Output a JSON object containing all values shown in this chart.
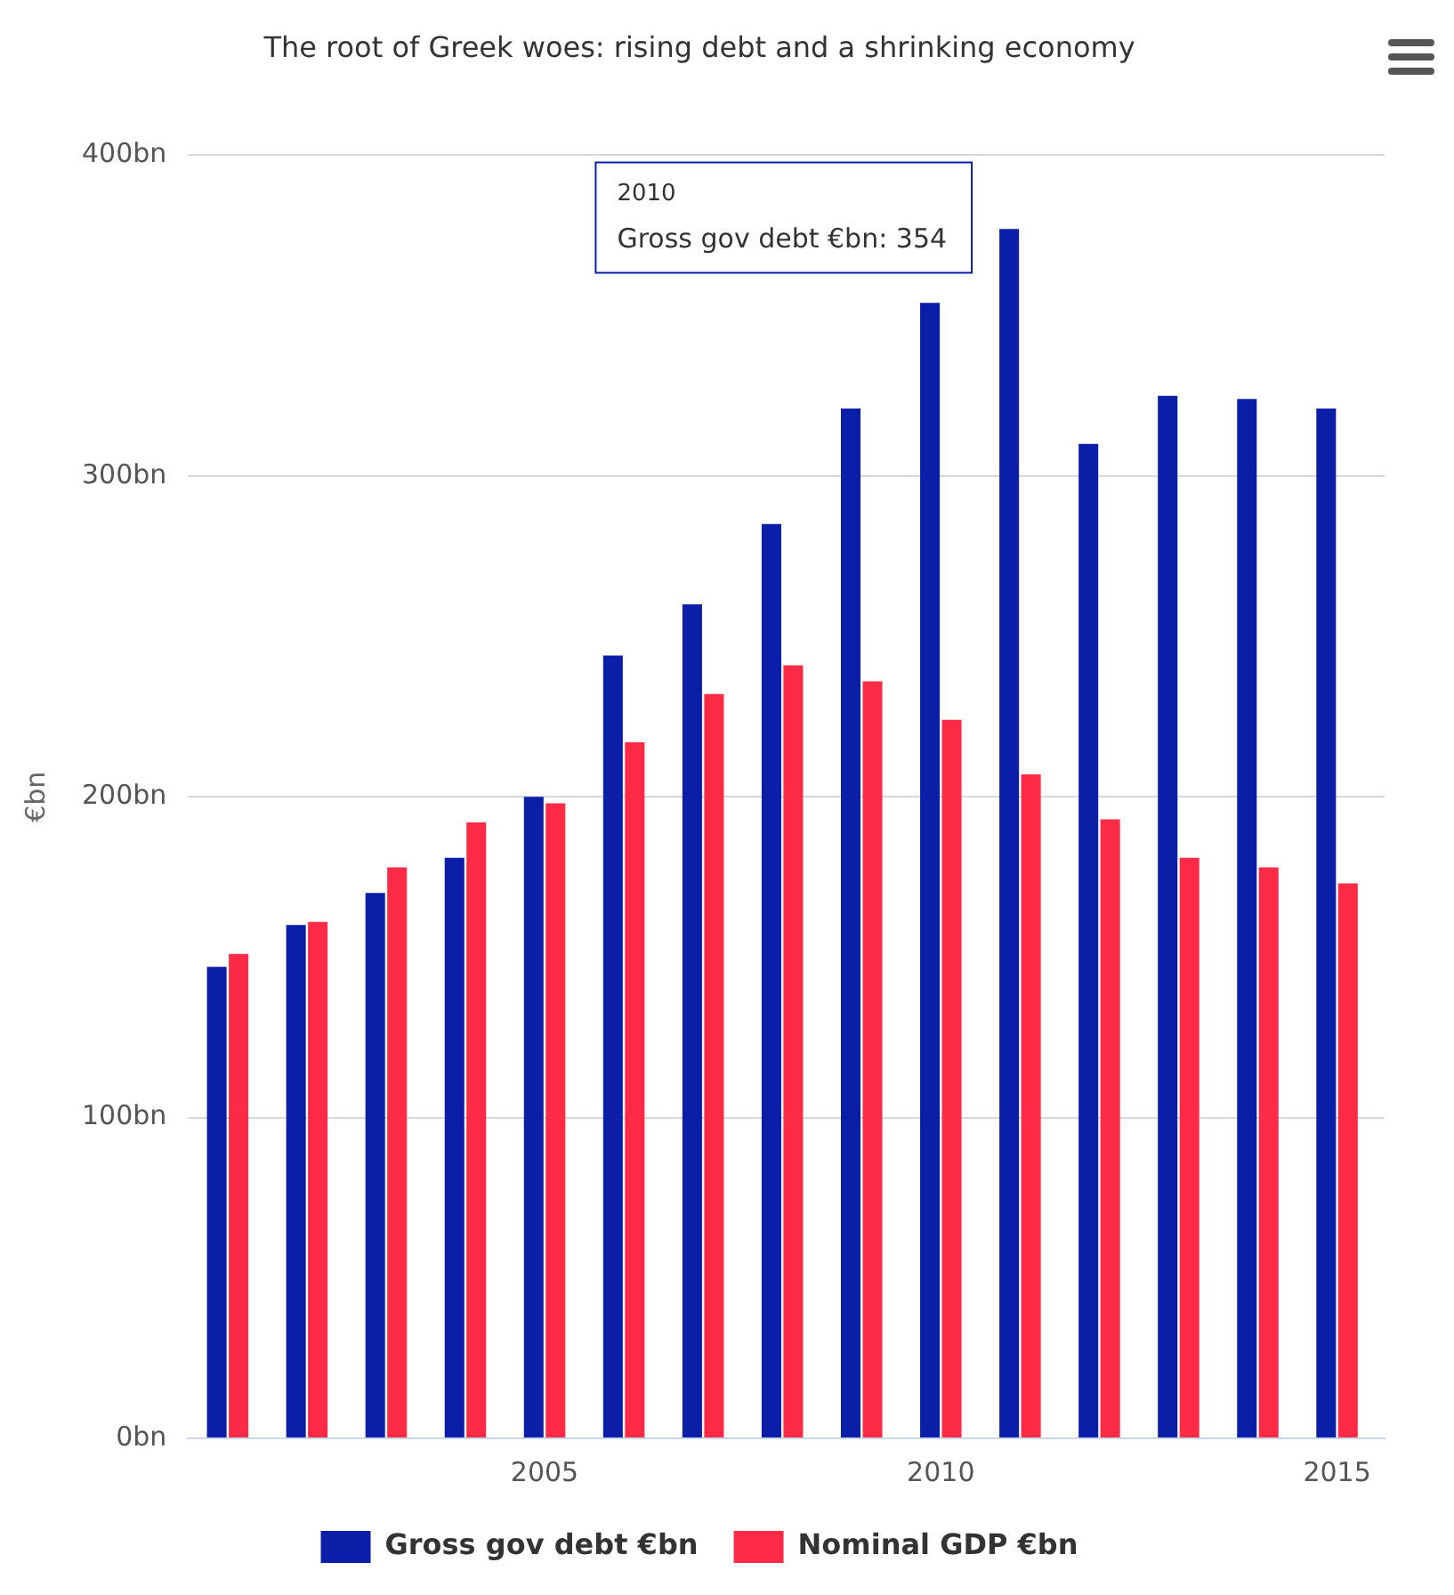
{
  "chart_data": {
    "type": "bar",
    "title": "The root of Greek woes: rising debt and a shrinking economy",
    "ylabel": "€bn",
    "x": [
      2001,
      2002,
      2003,
      2004,
      2005,
      2006,
      2007,
      2008,
      2009,
      2010,
      2011,
      2012,
      2013,
      2014,
      2015
    ],
    "series": [
      {
        "name": "Gross gov debt €bn",
        "color": "#0a1ea8",
        "values": [
          147,
          160,
          170,
          181,
          200,
          244,
          260,
          285,
          321,
          354,
          377,
          310,
          325,
          324,
          321
        ]
      },
      {
        "name": "Nominal GDP €bn",
        "color": "#ff2a45",
        "values": [
          151,
          161,
          178,
          192,
          198,
          217,
          232,
          241,
          236,
          224,
          207,
          193,
          181,
          178,
          173
        ]
      }
    ],
    "xlim": [
      2000.5,
      2015.6
    ],
    "xticks": [
      2005,
      2010,
      2015
    ],
    "ylim": [
      0,
      400
    ],
    "yticks": [
      {
        "value": 0,
        "label": "0bn"
      },
      {
        "value": 100,
        "label": "100bn"
      },
      {
        "value": 200,
        "label": "200bn"
      },
      {
        "value": 300,
        "label": "300bn"
      },
      {
        "value": 400,
        "label": "400bn"
      }
    ],
    "grid": "y",
    "legend": "bottom",
    "annotations": [
      "2010",
      "Gross gov debt €bn: 354"
    ]
  }
}
